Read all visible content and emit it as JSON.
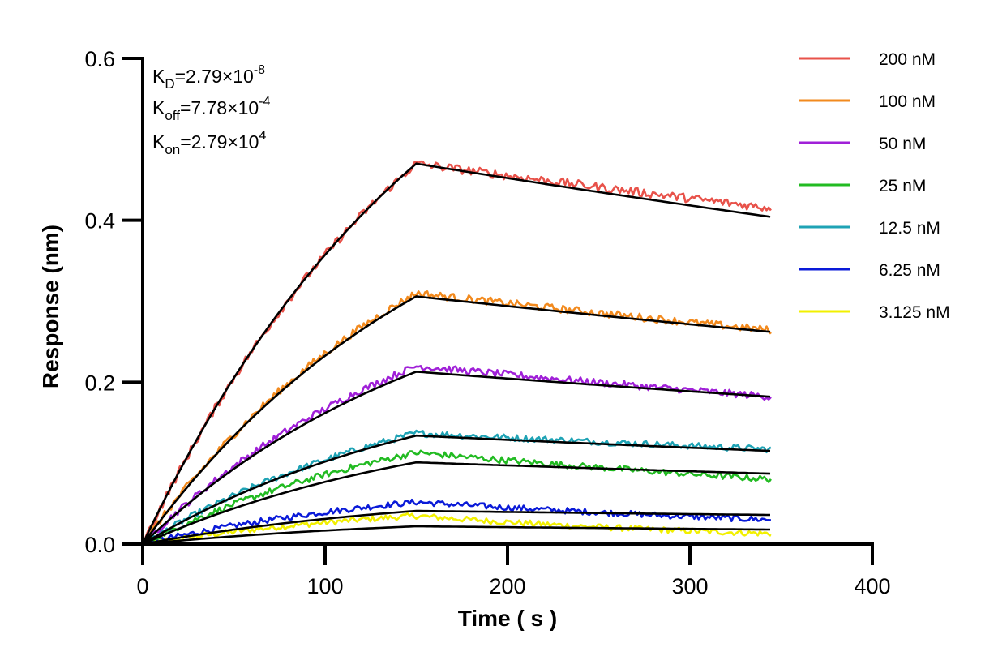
{
  "chart_data": {
    "type": "line",
    "xlabel": "Time ( s )",
    "ylabel": "Response (nm)",
    "xlim": [
      0,
      400
    ],
    "ylim": [
      0,
      0.6
    ],
    "xticks": [
      0,
      100,
      200,
      300,
      400
    ],
    "yticks": [
      0,
      0.2,
      0.4,
      0.6
    ],
    "xtick_labels": [
      "0",
      "100",
      "200",
      "300",
      "400"
    ],
    "ytick_labels": [
      "0.0",
      "0.2",
      "0.4",
      "0.6"
    ],
    "grid": false,
    "legend_position": "top-right",
    "association_end": 150,
    "dissociation_end": 345,
    "kinetics": {
      "kd": {
        "main": "K",
        "sub": "D",
        "value": "=2.79×10",
        "exp": "-8"
      },
      "koff": {
        "main": "K",
        "sub": "off",
        "value": "=7.78×10",
        "exp": "-4"
      },
      "kon": {
        "main": "K",
        "sub": "on",
        "value": "=2.79×10",
        "exp": "4"
      }
    },
    "fit_color": "#000000",
    "series": [
      {
        "name": "200 nM",
        "color": "#E8524A",
        "peak": 0.47,
        "fit_peak": 0.47,
        "end": 0.415,
        "fit_end": 0.404
      },
      {
        "name": "100 nM",
        "color": "#F28A1E",
        "peak": 0.31,
        "fit_peak": 0.306,
        "end": 0.264,
        "fit_end": 0.262
      },
      {
        "name": "50 nM",
        "color": "#A020D8",
        "peak": 0.22,
        "fit_peak": 0.213,
        "end": 0.182,
        "fit_end": 0.182
      },
      {
        "name": "25 nM",
        "color": "#22BB22",
        "peak": 0.113,
        "fit_peak": 0.101,
        "end": 0.08,
        "fit_end": 0.087
      },
      {
        "name": "12.5 nM",
        "color": "#1FA3B5",
        "peak": 0.137,
        "fit_peak": 0.134,
        "end": 0.117,
        "fit_end": 0.115
      },
      {
        "name": "6.25 nM",
        "color": "#0A1AD8",
        "peak": 0.052,
        "fit_peak": 0.041,
        "end": 0.03,
        "fit_end": 0.036
      },
      {
        "name": "3.125 nM",
        "color": "#F2F000",
        "peak": 0.035,
        "fit_peak": 0.022,
        "end": 0.013,
        "fit_end": 0.018
      }
    ]
  }
}
